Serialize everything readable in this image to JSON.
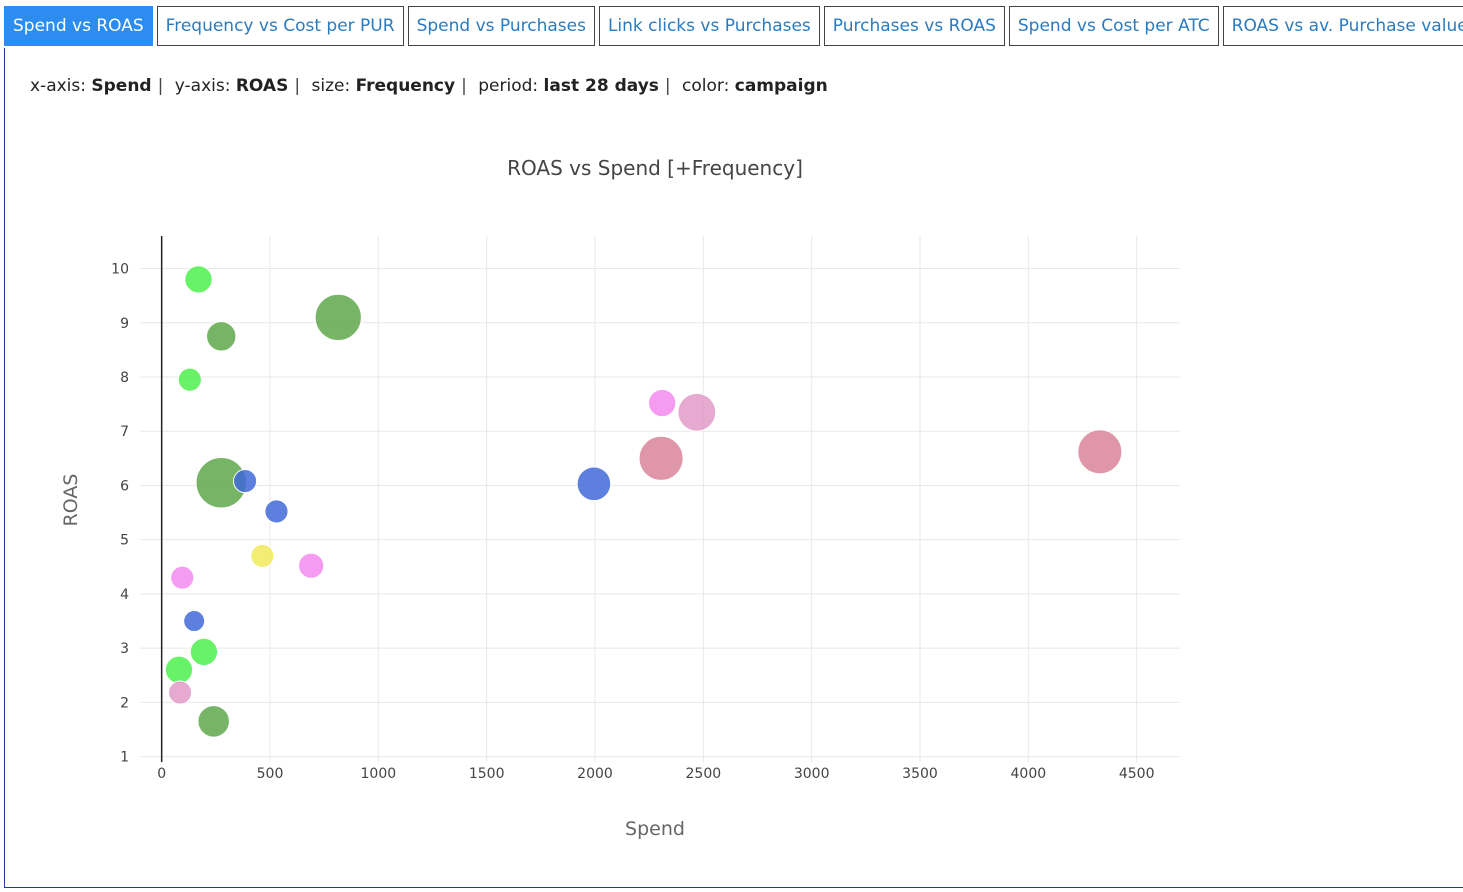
{
  "tabs": [
    {
      "label": "Spend vs ROAS",
      "active": true
    },
    {
      "label": "Frequency vs Cost per PUR",
      "active": false
    },
    {
      "label": "Spend vs Purchases",
      "active": false
    },
    {
      "label": "Link clicks vs Purchases",
      "active": false
    },
    {
      "label": "Purchases vs ROAS",
      "active": false
    },
    {
      "label": "Spend vs Cost per ATC",
      "active": false
    },
    {
      "label": "ROAS vs av. Purchase value",
      "active": false
    }
  ],
  "infobar": {
    "x_label": "x-axis:",
    "x_value": "Spend",
    "y_label": "y-axis:",
    "y_value": "ROAS",
    "size_label": "size:",
    "size_value": "Frequency",
    "period_label": "period:",
    "period_value": "last 28 days",
    "color_label": "color:",
    "color_value": "campaign"
  },
  "chart_data": {
    "type": "scatter",
    "title": "ROAS vs Spend [+Frequency]",
    "xlabel": "Spend",
    "ylabel": "ROAS",
    "xlim": [
      -100,
      4700
    ],
    "ylim": [
      0.9,
      10.6
    ],
    "xticks": [
      0,
      500,
      1000,
      1500,
      2000,
      2500,
      3000,
      3500,
      4000,
      4500
    ],
    "yticks": [
      1,
      2,
      3,
      4,
      5,
      6,
      7,
      8,
      9,
      10
    ],
    "grid": true,
    "points": [
      {
        "x": 170,
        "y": 9.8,
        "size": 1.3,
        "color": "#4df04d"
      },
      {
        "x": 815,
        "y": 9.1,
        "size": 2.2,
        "color": "#5ea84a"
      },
      {
        "x": 275,
        "y": 8.75,
        "size": 1.4,
        "color": "#5ea84a"
      },
      {
        "x": 130,
        "y": 7.95,
        "size": 1.1,
        "color": "#4df04d"
      },
      {
        "x": 2310,
        "y": 7.52,
        "size": 1.3,
        "color": "#f48af0"
      },
      {
        "x": 2470,
        "y": 7.35,
        "size": 1.8,
        "color": "#e29ac8"
      },
      {
        "x": 2305,
        "y": 6.5,
        "size": 2.1,
        "color": "#d9849a"
      },
      {
        "x": 4330,
        "y": 6.62,
        "size": 2.1,
        "color": "#d9849a"
      },
      {
        "x": 275,
        "y": 6.05,
        "size": 2.4,
        "color": "#5ea84a"
      },
      {
        "x": 385,
        "y": 6.08,
        "size": 1.1,
        "color": "#4169d8"
      },
      {
        "x": 1995,
        "y": 6.03,
        "size": 1.6,
        "color": "#4169d8"
      },
      {
        "x": 530,
        "y": 5.52,
        "size": 1.1,
        "color": "#4169d8"
      },
      {
        "x": 465,
        "y": 4.7,
        "size": 1.1,
        "color": "#f2ea5a"
      },
      {
        "x": 690,
        "y": 4.52,
        "size": 1.2,
        "color": "#f48af0"
      },
      {
        "x": 95,
        "y": 4.3,
        "size": 1.1,
        "color": "#f48af0"
      },
      {
        "x": 150,
        "y": 3.5,
        "size": 1.0,
        "color": "#4169d8"
      },
      {
        "x": 195,
        "y": 2.93,
        "size": 1.3,
        "color": "#4df04d"
      },
      {
        "x": 80,
        "y": 2.6,
        "size": 1.3,
        "color": "#4df04d"
      },
      {
        "x": 85,
        "y": 2.18,
        "size": 1.1,
        "color": "#e29ac8"
      },
      {
        "x": 240,
        "y": 1.65,
        "size": 1.5,
        "color": "#5ea84a"
      }
    ]
  }
}
